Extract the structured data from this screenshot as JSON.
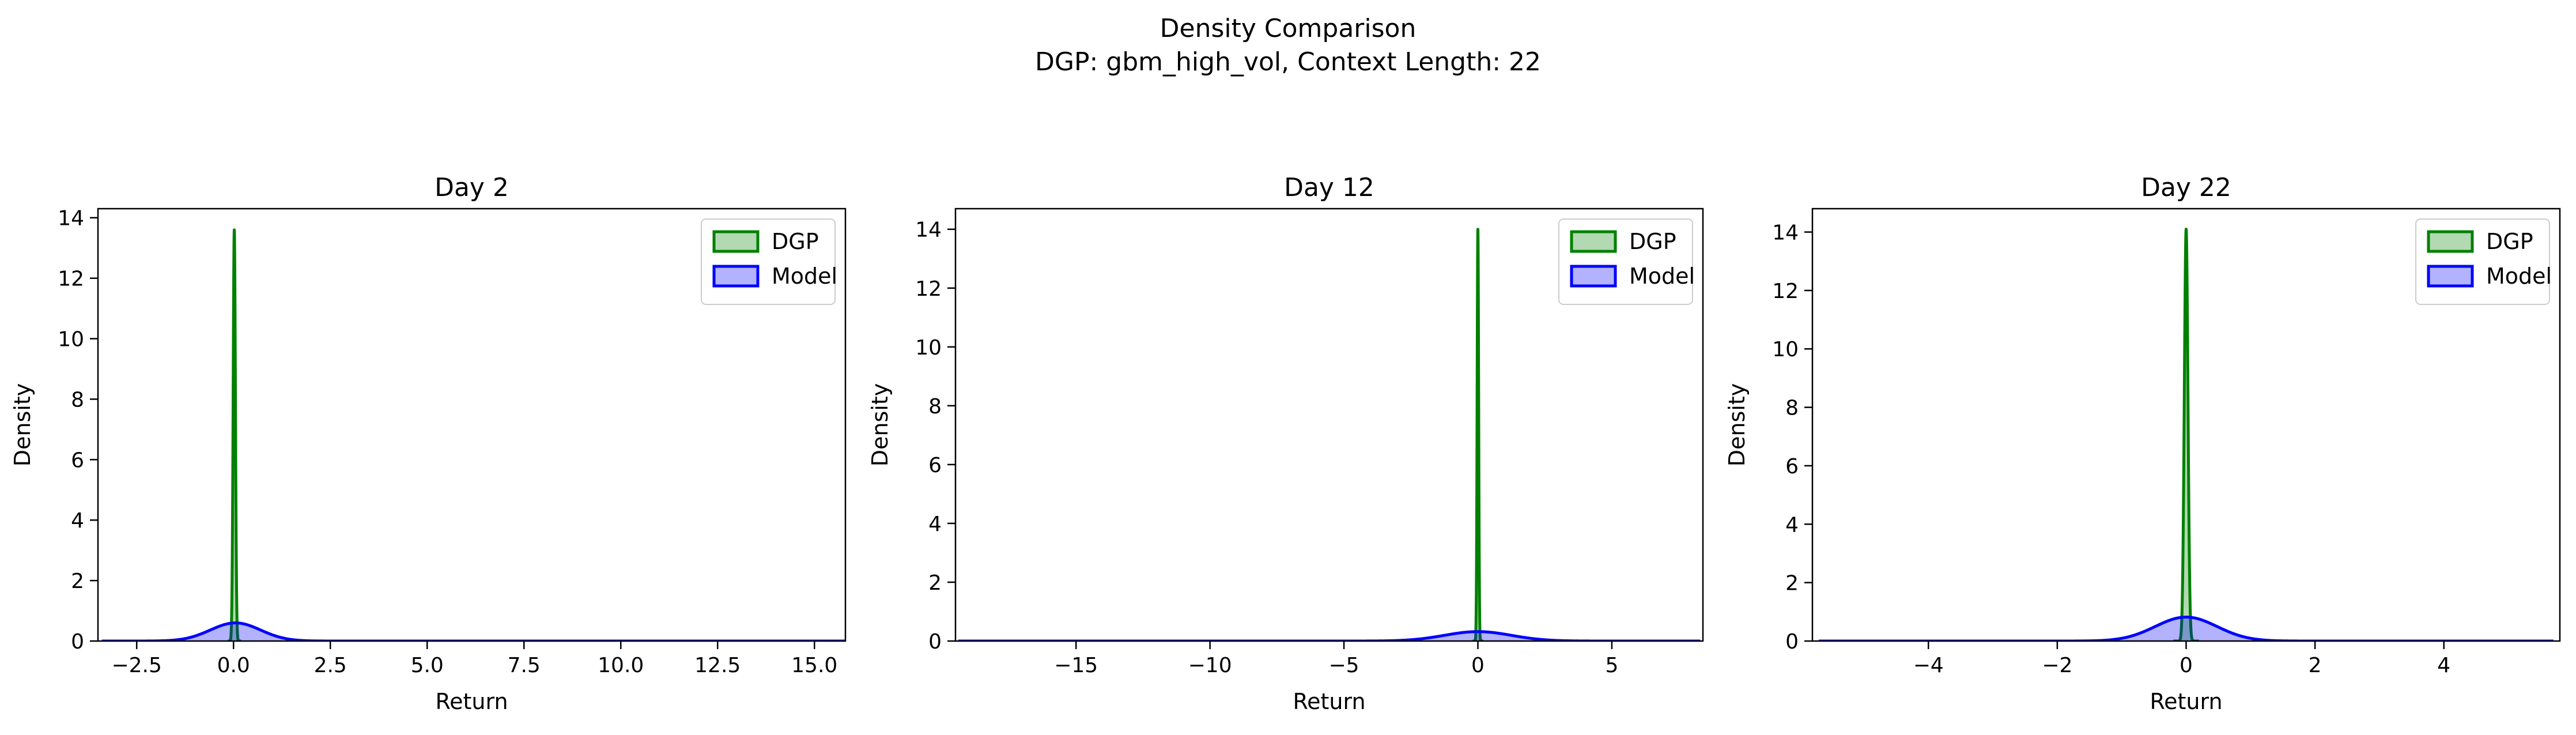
{
  "figure": {
    "title_line1": "Density Comparison",
    "title_line2": "DGP: gbm_high_vol, Context Length: 22"
  },
  "chart_data": [
    {
      "type": "area",
      "title": "Day 2",
      "xlabel": "Return",
      "ylabel": "Density",
      "xlim": [
        -3.5,
        15.8
      ],
      "ylim": [
        0,
        14.3
      ],
      "xticks": [
        -2.5,
        0.0,
        2.5,
        5.0,
        7.5,
        10.0,
        12.5,
        15.0
      ],
      "xtick_labels": [
        "−2.5",
        "0.0",
        "2.5",
        "5.0",
        "7.5",
        "10.0",
        "12.5",
        "15.0"
      ],
      "yticks": [
        0,
        2,
        4,
        6,
        8,
        10,
        12,
        14
      ],
      "ytick_labels": [
        "0",
        "2",
        "4",
        "6",
        "8",
        "10",
        "12",
        "14"
      ],
      "legend_position": "top-right",
      "series": [
        {
          "name": "DGP",
          "color": "#008000",
          "mean": 0.02,
          "std": 0.029,
          "peak": 13.6,
          "range": [
            -0.15,
            0.2
          ]
        },
        {
          "name": "Model",
          "color": "#0000ff",
          "mean": 0.05,
          "std": 0.65,
          "peak": 0.6,
          "range": [
            -3.4,
            15.8
          ]
        }
      ]
    },
    {
      "type": "area",
      "title": "Day 12",
      "xlabel": "Return",
      "ylabel": "Density",
      "xlim": [
        -19.5,
        8.4
      ],
      "ylim": [
        0,
        14.7
      ],
      "xticks": [
        -15,
        -10,
        -5,
        0,
        5
      ],
      "xtick_labels": [
        "−15",
        "−10",
        "−5",
        "0",
        "5"
      ],
      "yticks": [
        0,
        2,
        4,
        6,
        8,
        10,
        12,
        14
      ],
      "ytick_labels": [
        "0",
        "2",
        "4",
        "6",
        "8",
        "10",
        "12",
        "14"
      ],
      "legend_position": "top-right",
      "series": [
        {
          "name": "DGP",
          "color": "#008000",
          "mean": 0.0,
          "std": 0.028,
          "peak": 14.0,
          "range": [
            -0.2,
            0.2
          ]
        },
        {
          "name": "Model",
          "color": "#0000ff",
          "mean": 0.0,
          "std": 1.25,
          "peak": 0.32,
          "range": [
            -19.4,
            8.3
          ]
        }
      ]
    },
    {
      "type": "area",
      "title": "Day 22",
      "xlabel": "Return",
      "ylabel": "Density",
      "xlim": [
        -5.8,
        5.8
      ],
      "ylim": [
        0,
        14.8
      ],
      "xticks": [
        -4,
        -2,
        0,
        2,
        4
      ],
      "xtick_labels": [
        "−4",
        "−2",
        "0",
        "2",
        "4"
      ],
      "yticks": [
        0,
        2,
        4,
        6,
        8,
        10,
        12,
        14
      ],
      "ytick_labels": [
        "0",
        "2",
        "4",
        "6",
        "8",
        "10",
        "12",
        "14"
      ],
      "legend_position": "top-right",
      "series": [
        {
          "name": "DGP",
          "color": "#008000",
          "mean": 0.0,
          "std": 0.028,
          "peak": 14.1,
          "range": [
            -0.2,
            0.2
          ]
        },
        {
          "name": "Model",
          "color": "#0000ff",
          "mean": 0.0,
          "std": 0.48,
          "peak": 0.82,
          "range": [
            -5.7,
            5.7
          ]
        }
      ]
    }
  ]
}
